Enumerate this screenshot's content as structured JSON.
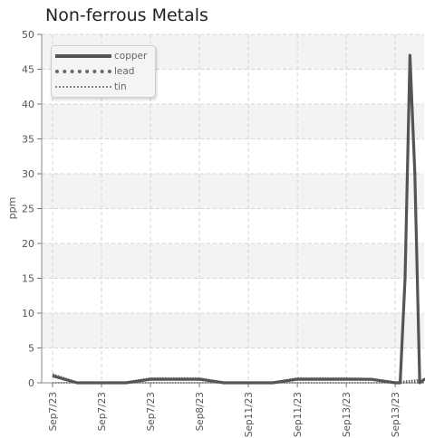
{
  "chart_data": {
    "type": "line",
    "title": "Non-ferrous Metals",
    "xlabel": "",
    "ylabel": "ppm",
    "ylim": [
      0,
      50
    ],
    "yticks": [
      0,
      5,
      10,
      15,
      20,
      25,
      30,
      35,
      40,
      45,
      50
    ],
    "xtick_labels": [
      "Sep7/23",
      "Sep7/23",
      "Sep7/23",
      "Sep8/23",
      "Sep11/23",
      "Sep11/23",
      "Sep13/23",
      "Sep13/23"
    ],
    "grid": true,
    "legend_position": "top-left",
    "series": [
      {
        "name": "copper",
        "color": "#555555",
        "style": "solid",
        "x": [
          0,
          0.5,
          1,
          1.5,
          2,
          2.5,
          3,
          3.5,
          4,
          4.5,
          5,
          5.5,
          6,
          6.5,
          7,
          7.1,
          7.2,
          7.3,
          7.4,
          7.5,
          7.6,
          7.7
        ],
        "values": [
          1,
          0,
          0,
          0,
          0.5,
          0.5,
          0.5,
          0,
          0,
          0,
          0.5,
          0.5,
          0.5,
          0.5,
          0,
          0,
          15,
          47,
          30,
          0,
          0.5,
          0.5
        ]
      },
      {
        "name": "lead",
        "color": "#666666",
        "style": "dotted",
        "x": [
          0,
          0.5,
          1,
          1.5,
          2,
          2.5,
          3,
          3.5,
          4,
          4.5,
          5,
          5.5,
          6,
          6.5,
          7,
          7.7
        ],
        "values": [
          1.2,
          0,
          0,
          0,
          0.6,
          0.6,
          0.6,
          0,
          0,
          0,
          0.6,
          0.6,
          0.6,
          0.5,
          0,
          0.5
        ]
      },
      {
        "name": "tin",
        "color": "#888888",
        "style": "dotted",
        "x": [
          0,
          0.5,
          1,
          2,
          3,
          4,
          5,
          6,
          7,
          7.7
        ],
        "values": [
          0,
          0,
          0,
          0,
          0,
          0,
          0,
          0,
          0,
          0
        ]
      }
    ]
  }
}
